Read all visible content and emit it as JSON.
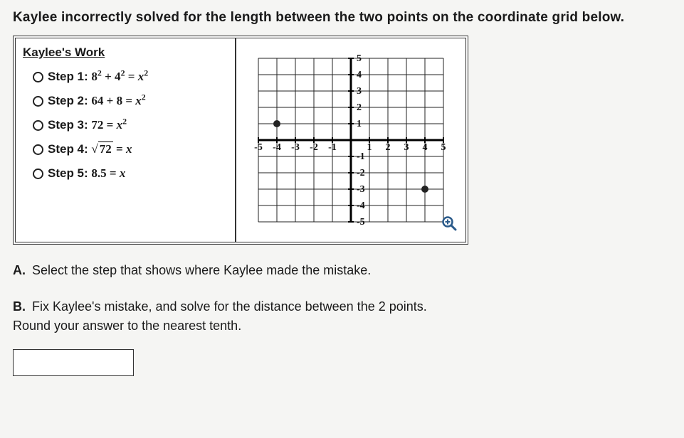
{
  "prompt": "Kaylee incorrectly solved for the length between the two points on the coordinate grid below.",
  "work_title": "Kaylee's Work",
  "steps": [
    {
      "label": "Step 1:",
      "expr_html": "8<sup>2</sup> + 4<sup>2</sup> = <i>x</i><sup>2</sup>"
    },
    {
      "label": "Step 2:",
      "expr_html": "64 + 8 = <i>x</i><sup>2</sup>"
    },
    {
      "label": "Step 3:",
      "expr_html": "72 = <i>x</i><sup>2</sup>"
    },
    {
      "label": "Step 4:",
      "expr_html": "<span class='sqrt-sym'>√<span class='radicand'>72</span></span> = <i>x</i>"
    },
    {
      "label": "Step 5:",
      "expr_html": "8.5 = <i>x</i>"
    }
  ],
  "questionA": {
    "letter": "A.",
    "text": "Select the step that shows where Kaylee made the mistake."
  },
  "questionB": {
    "letter": "B.",
    "line1": "Fix Kaylee's mistake, and solve for the distance between the 2 points.",
    "line2": "Round your answer to the nearest tenth."
  },
  "graph": {
    "type": "scatter",
    "xlim": [
      -5,
      5
    ],
    "ylim": [
      -5,
      5
    ],
    "tick_step": 1,
    "grid_color": "#222222",
    "axis_color": "#000000",
    "background_color": "#ffffff",
    "point_color": "#222222",
    "point_radius": 5,
    "axis_linewidth": 3,
    "grid_linewidth": 1,
    "label_fontsize": 14,
    "points": [
      {
        "x": -4,
        "y": 1
      },
      {
        "x": 4,
        "y": -3
      }
    ],
    "x_labels": [
      -5,
      -4,
      -3,
      -2,
      -1,
      1,
      2,
      3,
      4,
      5
    ],
    "y_labels": [
      -5,
      -4,
      -3,
      -2,
      -1,
      1,
      2,
      3,
      4,
      5
    ]
  }
}
